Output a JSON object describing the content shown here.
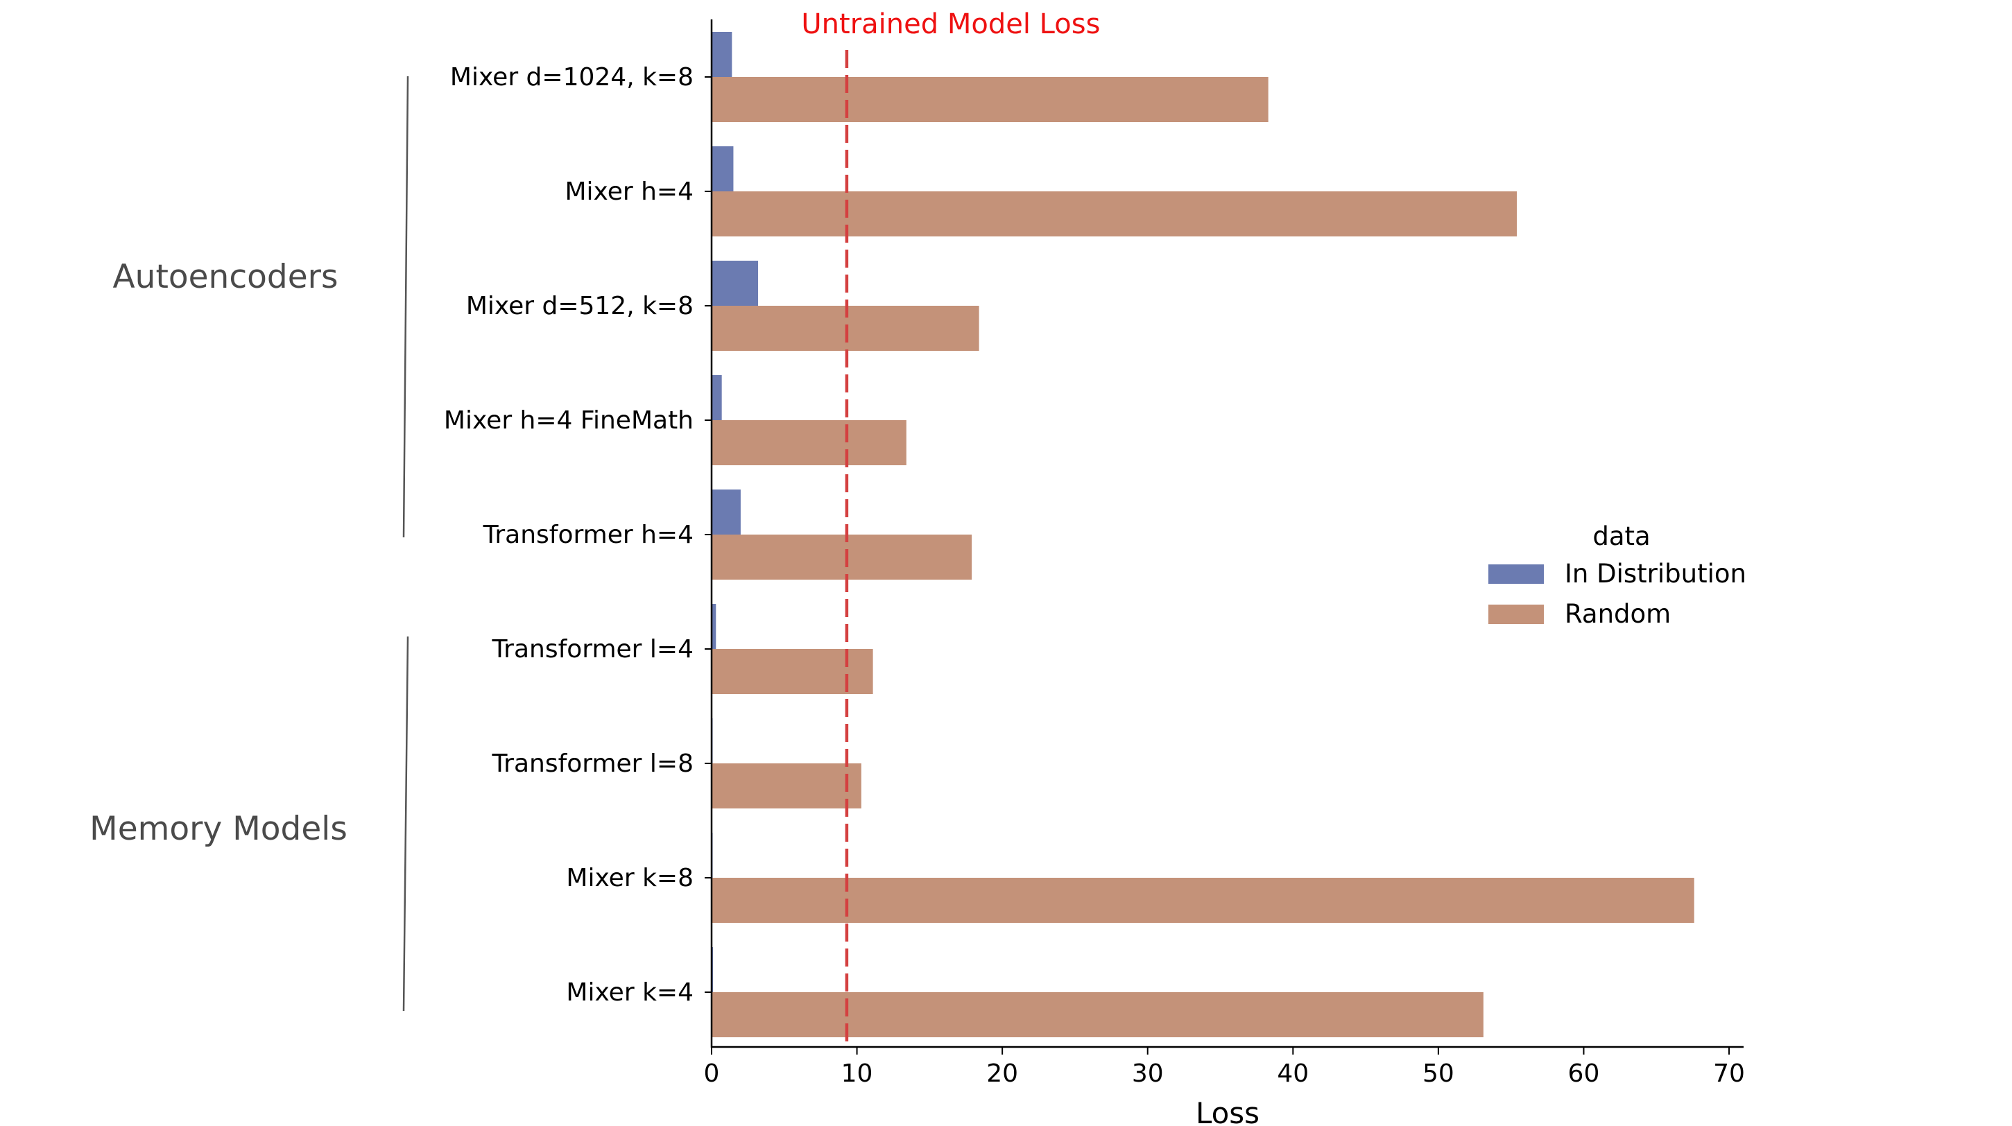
{
  "chart_data": {
    "type": "bar",
    "orientation": "horizontal",
    "categories": [
      "Mixer d=1024, k=8",
      "Mixer h=4",
      "Mixer d=512, k=8",
      "Mixer h=4 FineMath",
      "Transformer h=4",
      "Transformer l=4",
      "Transformer l=8",
      "Mixer k=8",
      "Mixer k=4"
    ],
    "series": [
      {
        "name": "In Distribution",
        "color": "#6b7bb1",
        "values": [
          1.4,
          1.5,
          3.2,
          0.7,
          2.0,
          0.3,
          0.05,
          0.05,
          0.1
        ]
      },
      {
        "name": "Random",
        "color": "#c49279",
        "values": [
          38.3,
          55.4,
          18.4,
          13.4,
          17.9,
          11.1,
          10.3,
          67.6,
          53.1
        ]
      }
    ],
    "xlabel": "Loss",
    "xlim": [
      0,
      71
    ],
    "xticks": [
      0,
      10,
      20,
      30,
      40,
      50,
      60,
      70
    ],
    "legend": {
      "title": "data",
      "placement": "center-right"
    },
    "reference_line": {
      "label": "Untrained Model Loss",
      "value": 9.3,
      "color": "#d44040",
      "style": "dashed"
    },
    "groups": [
      {
        "label": "Autoencoders",
        "from": 0,
        "to": 4
      },
      {
        "label": "Memory Models",
        "from": 5,
        "to": 8
      }
    ]
  }
}
